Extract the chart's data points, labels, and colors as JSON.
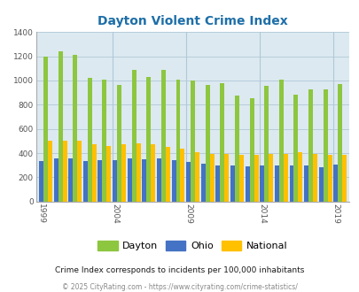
{
  "title": "Dayton Violent Crime Index",
  "years": [
    1999,
    2000,
    2001,
    2002,
    2003,
    2004,
    2005,
    2006,
    2007,
    2008,
    2009,
    2010,
    2011,
    2012,
    2013,
    2014,
    2015,
    2016,
    2017,
    2018,
    2019
  ],
  "dayton": [
    1200,
    1240,
    1210,
    1020,
    1010,
    960,
    1085,
    1030,
    1085,
    1010,
    1000,
    960,
    980,
    875,
    855,
    955,
    1005,
    885,
    925,
    930,
    970
  ],
  "ohio": [
    335,
    355,
    355,
    335,
    345,
    345,
    355,
    350,
    355,
    340,
    325,
    310,
    300,
    300,
    290,
    295,
    300,
    300,
    300,
    285,
    305
  ],
  "national": [
    505,
    505,
    500,
    475,
    460,
    470,
    480,
    475,
    450,
    435,
    410,
    395,
    395,
    385,
    385,
    390,
    395,
    405,
    395,
    385,
    385
  ],
  "dayton_color": "#8dc63f",
  "ohio_color": "#4472c4",
  "national_color": "#ffc000",
  "plot_bg": "#dce9f0",
  "ylim": [
    0,
    1400
  ],
  "yticks": [
    0,
    200,
    400,
    600,
    800,
    1000,
    1200,
    1400
  ],
  "xtick_years": [
    1999,
    2004,
    2009,
    2014,
    2019
  ],
  "subtitle": "Crime Index corresponds to incidents per 100,000 inhabitants",
  "footer": "© 2025 CityRating.com - https://www.cityrating.com/crime-statistics/",
  "title_color": "#1e6fa8",
  "subtitle_color": "#1a1a1a",
  "footer_color": "#888888",
  "grid_color": "#b0c8d8"
}
